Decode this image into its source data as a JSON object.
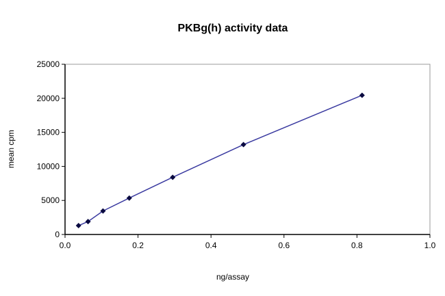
{
  "chart_data": {
    "type": "line",
    "title": "PKBg(h) activity data",
    "xlabel": "ng/assay",
    "ylabel": "mean cpm",
    "xlim": [
      0,
      1.0
    ],
    "ylim": [
      0,
      25000
    ],
    "xticks": [
      "0.0",
      "0.2",
      "0.4",
      "0.6",
      "0.8",
      "1.0"
    ],
    "yticks": [
      "0",
      "5000",
      "10000",
      "15000",
      "20000",
      "25000"
    ],
    "grid": false,
    "legend": "none",
    "marker": "diamond",
    "line_color": "#3a3aa0",
    "marker_color": "#0a0a40",
    "series": [
      {
        "x": [
          0.037,
          0.063,
          0.104,
          0.176,
          0.295,
          0.489,
          0.814
        ],
        "y": [
          1300,
          1900,
          3450,
          5350,
          8400,
          13200,
          20450
        ]
      }
    ]
  }
}
